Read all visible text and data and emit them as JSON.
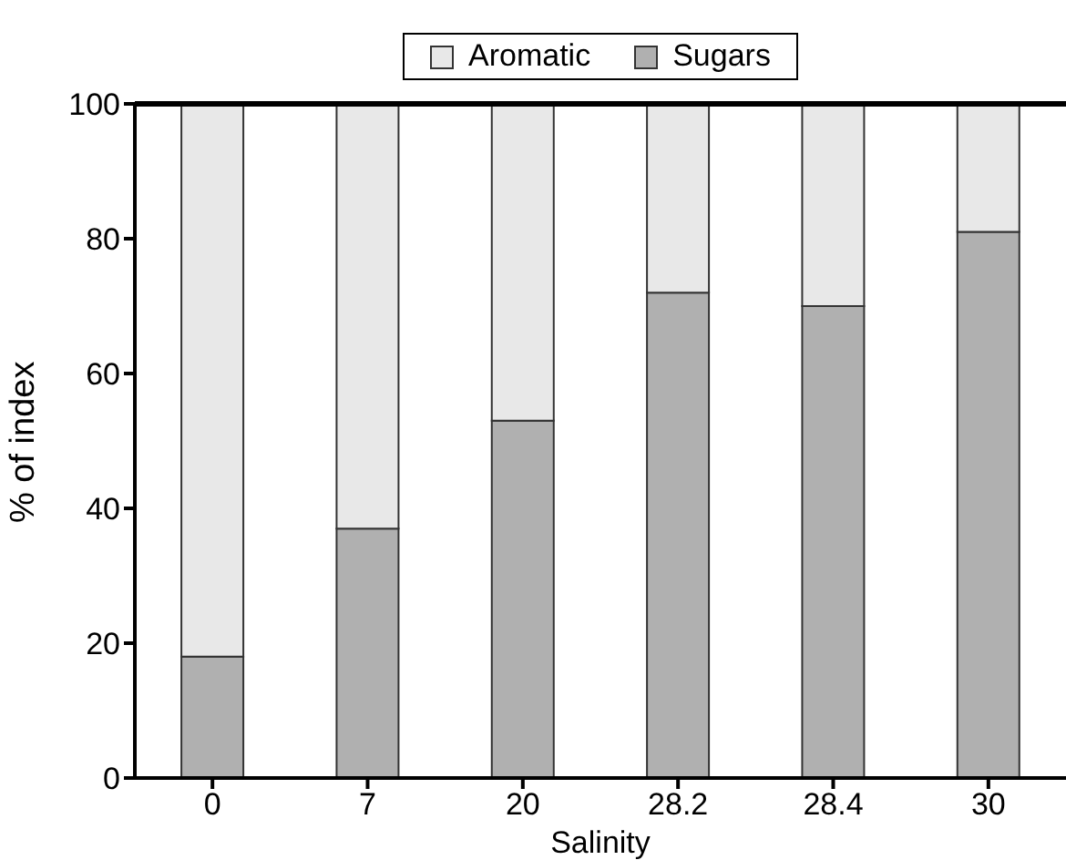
{
  "chart_data": {
    "type": "bar",
    "stacked": true,
    "xlabel": "Salinity",
    "ylabel": "% of index",
    "categories": [
      "0",
      "7",
      "20",
      "28.2",
      "28.4",
      "30"
    ],
    "series": [
      {
        "name": "Sugars",
        "color": "#b0b0b0",
        "values": [
          18,
          37,
          53,
          72,
          70,
          81
        ]
      },
      {
        "name": "Aromatic",
        "color": "#e8e8e8",
        "values": [
          82,
          63,
          47,
          28,
          30,
          19
        ]
      }
    ],
    "ylim": [
      0,
      100
    ],
    "yticks": [
      0,
      20,
      40,
      60,
      80,
      100
    ],
    "grid": false,
    "legend": "top"
  }
}
